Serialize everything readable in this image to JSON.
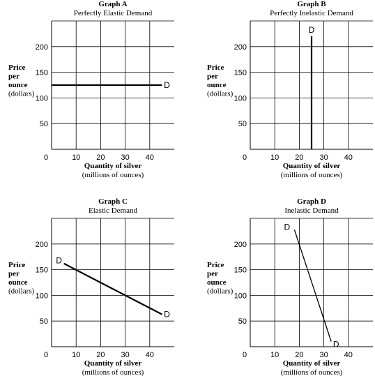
{
  "chart_data": [
    {
      "type": "line",
      "title": "Graph A",
      "subtitle": "Perfectly Elastic Demand",
      "ylabel_lines": [
        "Price",
        "per",
        "ounce",
        "(dollars)"
      ],
      "xlabel": "Quantity of silver",
      "xlabel_sub": "(millions of ounces)",
      "xlim": [
        0,
        50
      ],
      "ylim": [
        0,
        250
      ],
      "xticks": [
        0,
        10,
        20,
        30,
        40
      ],
      "yticks": [
        50,
        100,
        150,
        200
      ],
      "grid": true,
      "series": [
        {
          "name": "D",
          "line_weight": "thick",
          "x": [
            0,
            45
          ],
          "y": [
            125,
            125
          ],
          "labels": [
            {
              "text": "D",
              "x": 47,
              "y": 125
            }
          ]
        }
      ]
    },
    {
      "type": "line",
      "title": "Graph B",
      "subtitle": "Perfectly Inelastic Demand",
      "ylabel_lines": [
        "Price",
        "per",
        "ounce",
        "(dollars)"
      ],
      "xlabel": "Quantity of silver",
      "xlabel_sub": "(millions of ounces)",
      "xlim": [
        0,
        50
      ],
      "ylim": [
        0,
        250
      ],
      "xticks": [
        0,
        10,
        20,
        30,
        40
      ],
      "yticks": [
        50,
        100,
        150,
        200
      ],
      "grid": true,
      "series": [
        {
          "name": "D",
          "line_weight": "thick",
          "x": [
            25,
            25
          ],
          "y": [
            220,
            0
          ],
          "labels": [
            {
              "text": "D",
              "x": 25,
              "y": 232
            }
          ]
        }
      ]
    },
    {
      "type": "line",
      "title": "Graph C",
      "subtitle": "Elastic Demand",
      "ylabel_lines": [
        "Price",
        "per",
        "ounce",
        "(dollars)"
      ],
      "xlabel": "Quantity of silver",
      "xlabel_sub": "(millions of ounces)",
      "xlim": [
        0,
        50
      ],
      "ylim": [
        0,
        250
      ],
      "xticks": [
        0,
        10,
        20,
        30,
        40
      ],
      "yticks": [
        50,
        100,
        150,
        200
      ],
      "grid": true,
      "series": [
        {
          "name": "D",
          "line_weight": "thick",
          "x": [
            5,
            45
          ],
          "y": [
            162,
            63
          ],
          "labels": [
            {
              "text": "D",
              "x": 3,
              "y": 168
            },
            {
              "text": "D",
              "x": 47,
              "y": 63
            }
          ]
        }
      ]
    },
    {
      "type": "line",
      "title": "Graph D",
      "subtitle": "Inelastic Demand",
      "ylabel_lines": [
        "Price",
        "per",
        "ounce",
        "(dollars)"
      ],
      "xlabel": "Quantity of silver",
      "xlabel_sub": "(millions of ounces)",
      "xlim": [
        0,
        50
      ],
      "ylim": [
        0,
        250
      ],
      "xticks": [
        0,
        10,
        20,
        30,
        40
      ],
      "yticks": [
        50,
        100,
        150,
        200
      ],
      "grid": true,
      "series": [
        {
          "name": "D",
          "line_weight": "thin",
          "x": [
            18,
            33
          ],
          "y": [
            228,
            10
          ],
          "labels": [
            {
              "text": "D",
              "x": 15,
              "y": 233
            },
            {
              "text": "D",
              "x": 35,
              "y": 5
            }
          ]
        }
      ]
    }
  ]
}
